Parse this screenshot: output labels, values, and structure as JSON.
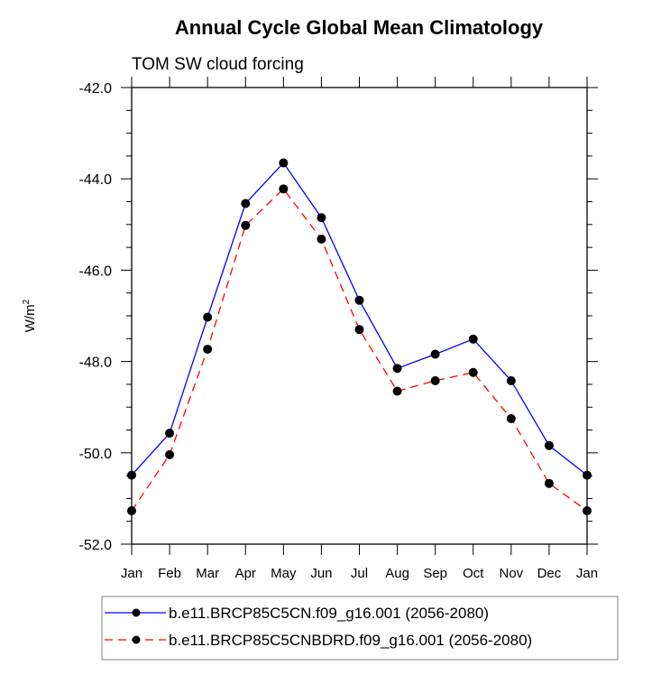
{
  "chart_data": {
    "type": "line",
    "title": "Annual Cycle Global Mean Climatology",
    "subtitle": "TOM SW cloud forcing",
    "xlabel": "",
    "ylabel": "W/m",
    "ylabel_superscript": "2",
    "categories": [
      "Jan",
      "Feb",
      "Mar",
      "Apr",
      "May",
      "Jun",
      "Jul",
      "Aug",
      "Sep",
      "Oct",
      "Nov",
      "Dec",
      "Jan"
    ],
    "ylim": [
      -52.0,
      -42.0
    ],
    "yticks_major": [
      -52.0,
      -50.0,
      -48.0,
      -46.0,
      -44.0,
      -42.0
    ],
    "ytick_labels": [
      "-52.0",
      "-50.0",
      "-48.0",
      "-46.0",
      "-44.0",
      "-42.0"
    ],
    "ytick_minor_step": 0.5,
    "grid": false,
    "legend_position": "bottom",
    "series": [
      {
        "name": "b.e11.BRCP85C5CN.f09_g16.001 (2056-2080)",
        "color": "#0000ff",
        "line_style": "solid",
        "marker": "filled-circle",
        "values": [
          -50.49,
          -49.57,
          -47.03,
          -44.54,
          -43.65,
          -44.85,
          -46.66,
          -48.15,
          -47.84,
          -47.51,
          -48.42,
          -49.84,
          -50.49
        ]
      },
      {
        "name": "b.e11.BRCP85C5CNBDRD.f09_g16.001 (2056-2080)",
        "color": "#ff0000",
        "line_style": "dashed",
        "marker": "filled-circle",
        "values": [
          -51.27,
          -50.04,
          -47.73,
          -45.02,
          -44.22,
          -45.32,
          -47.3,
          -48.65,
          -48.42,
          -48.24,
          -49.25,
          -50.67,
          -51.27
        ]
      }
    ]
  }
}
